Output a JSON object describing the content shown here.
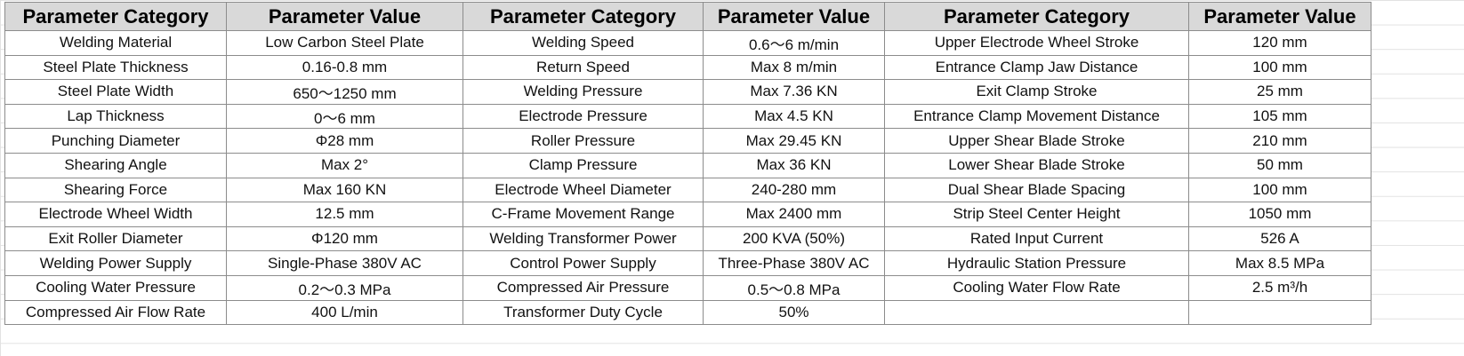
{
  "table": {
    "headers": [
      "Parameter Category",
      "Parameter Value",
      "Parameter Category",
      "Parameter Value",
      "Parameter Category",
      "Parameter Value"
    ],
    "rows": [
      [
        "Welding Material",
        "Low Carbon Steel Plate",
        "Welding Speed",
        "0.6～6 m/min",
        "Upper Electrode Wheel Stroke",
        "120 mm"
      ],
      [
        "Steel Plate Thickness",
        "0.16-0.8 mm",
        "Return Speed",
        "Max 8 m/min",
        "Entrance Clamp Jaw Distance",
        "100 mm"
      ],
      [
        "Steel Plate Width",
        "650～1250 mm",
        "Welding Pressure",
        "Max 7.36 KN",
        "Exit Clamp Stroke",
        "25 mm"
      ],
      [
        "Lap Thickness",
        "0～6 mm",
        "Electrode Pressure",
        "Max 4.5 KN",
        "Entrance Clamp Movement Distance",
        "105 mm"
      ],
      [
        "Punching Diameter",
        "Φ28 mm",
        "Roller Pressure",
        "Max 29.45 KN",
        "Upper Shear Blade Stroke",
        "210 mm"
      ],
      [
        "Shearing Angle",
        "Max 2°",
        "Clamp Pressure",
        "Max 36 KN",
        "Lower Shear Blade Stroke",
        "50 mm"
      ],
      [
        "Shearing Force",
        "Max 160 KN",
        "Electrode Wheel Diameter",
        "240-280 mm",
        "Dual Shear Blade Spacing",
        "100 mm"
      ],
      [
        "Electrode Wheel Width",
        "12.5 mm",
        "C-Frame Movement Range",
        "Max 2400 mm",
        "Strip Steel Center Height",
        "1050 mm"
      ],
      [
        "Exit Roller Diameter",
        "Φ120 mm",
        "Welding Transformer Power",
        "200 KVA (50%)",
        "Rated Input Current",
        "526 A"
      ],
      [
        "Welding Power Supply",
        "Single-Phase 380V AC",
        "Control Power Supply",
        "Three-Phase 380V AC",
        "Hydraulic Station Pressure",
        "Max 8.5 MPa"
      ],
      [
        "Cooling Water Pressure",
        "0.2～0.3 MPa",
        "Compressed Air Pressure",
        "0.5～0.8 MPa",
        "Cooling Water Flow Rate",
        "2.5 m³/h"
      ],
      [
        "Compressed Air Flow Rate",
        "400 L/min",
        "Transformer Duty Cycle",
        "50%",
        "",
        ""
      ]
    ]
  }
}
